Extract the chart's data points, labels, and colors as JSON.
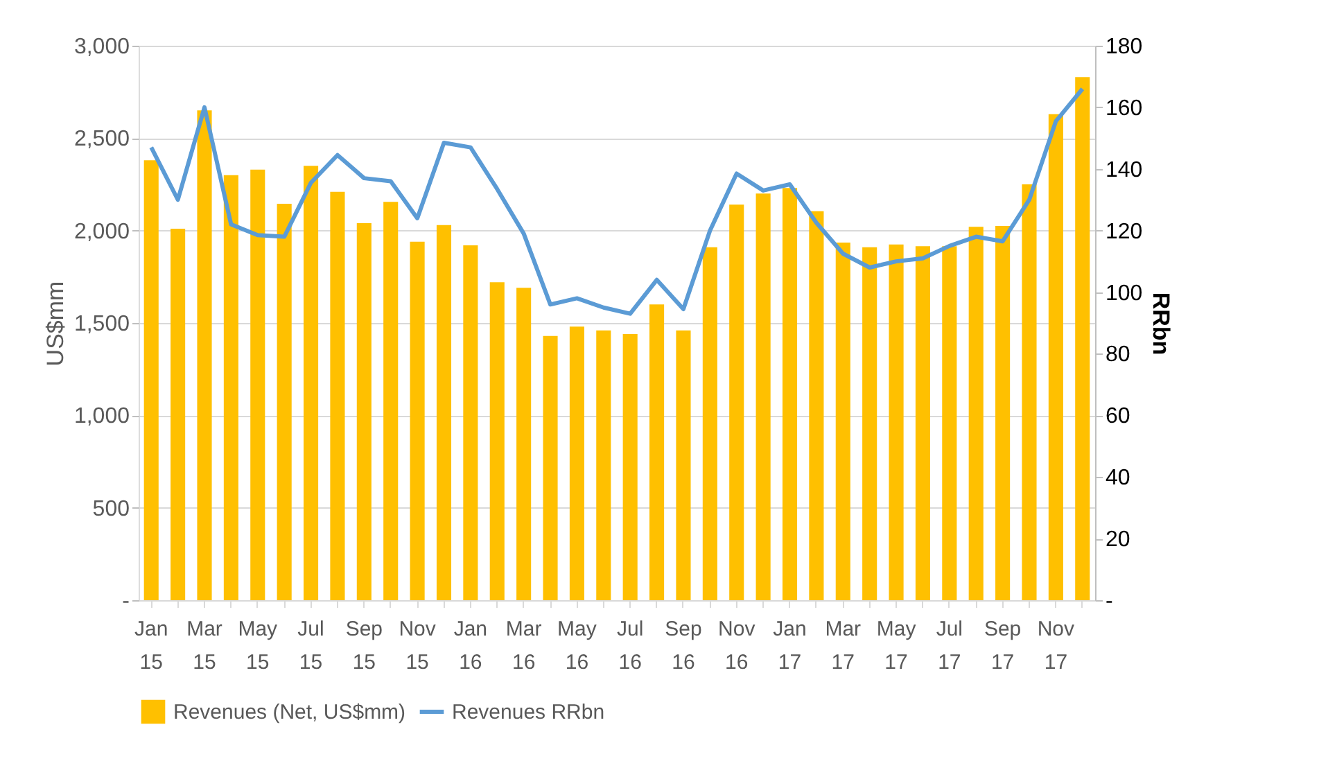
{
  "chart_data": {
    "type": "bar",
    "categories": [
      "Jan 15",
      null,
      "Mar 15",
      null,
      "May 15",
      null,
      "Jul 15",
      null,
      "Sep 15",
      null,
      "Nov 15",
      null,
      "Jan 16",
      null,
      "Mar 16",
      null,
      "May 16",
      null,
      "Jul 16",
      null,
      "Sep 16",
      null,
      "Nov 16",
      null,
      "Jan 17",
      null,
      "Mar 17",
      null,
      "May 17",
      null,
      "Jul 17",
      null,
      "Sep 17",
      null,
      "Nov 17",
      null
    ],
    "series": [
      {
        "name": "Revenues (Net, US$mm)",
        "color": "#ffc000",
        "values": [
          2380,
          2010,
          2650,
          2300,
          2330,
          2145,
          2350,
          2210,
          2040,
          2155,
          1940,
          2030,
          1920,
          1720,
          1690,
          1430,
          1480,
          1460,
          1440,
          1600,
          1460,
          1910,
          2140,
          2200,
          2230,
          2105,
          1935,
          1910,
          1925,
          1915,
          1915,
          2020,
          2025,
          2250,
          2630,
          2830
        ]
      },
      {
        "name": "Revenues RRbn",
        "type": "line",
        "axis": "y2",
        "color": "#5b9bd5",
        "values": [
          147,
          130,
          160,
          122,
          118.5,
          118,
          135.5,
          144.5,
          137,
          136,
          124,
          148.5,
          147,
          133.5,
          119,
          96,
          98,
          95,
          93,
          104,
          94.5,
          120,
          138.5,
          133,
          135,
          122.5,
          112.5,
          108,
          110,
          111,
          115,
          118,
          116.5,
          130,
          155.5,
          166
        ]
      }
    ],
    "ylabel": "US$mm",
    "y2label": "RRbn",
    "ylim": [
      0,
      3000
    ],
    "yticks": [
      {
        "value": 0,
        "label": "-"
      },
      {
        "value": 500,
        "label": "500"
      },
      {
        "value": 1000,
        "label": "1,000"
      },
      {
        "value": 1500,
        "label": "1,500"
      },
      {
        "value": 2000,
        "label": "2,000"
      },
      {
        "value": 2500,
        "label": "2,500"
      },
      {
        "value": 3000,
        "label": "3,000"
      }
    ],
    "y2lim": [
      0,
      180
    ],
    "y2ticks": [
      {
        "value": 0,
        "label": "-"
      },
      20,
      40,
      60,
      80,
      100,
      120,
      140,
      160,
      180
    ],
    "grid": "y",
    "legend": "bottom"
  }
}
